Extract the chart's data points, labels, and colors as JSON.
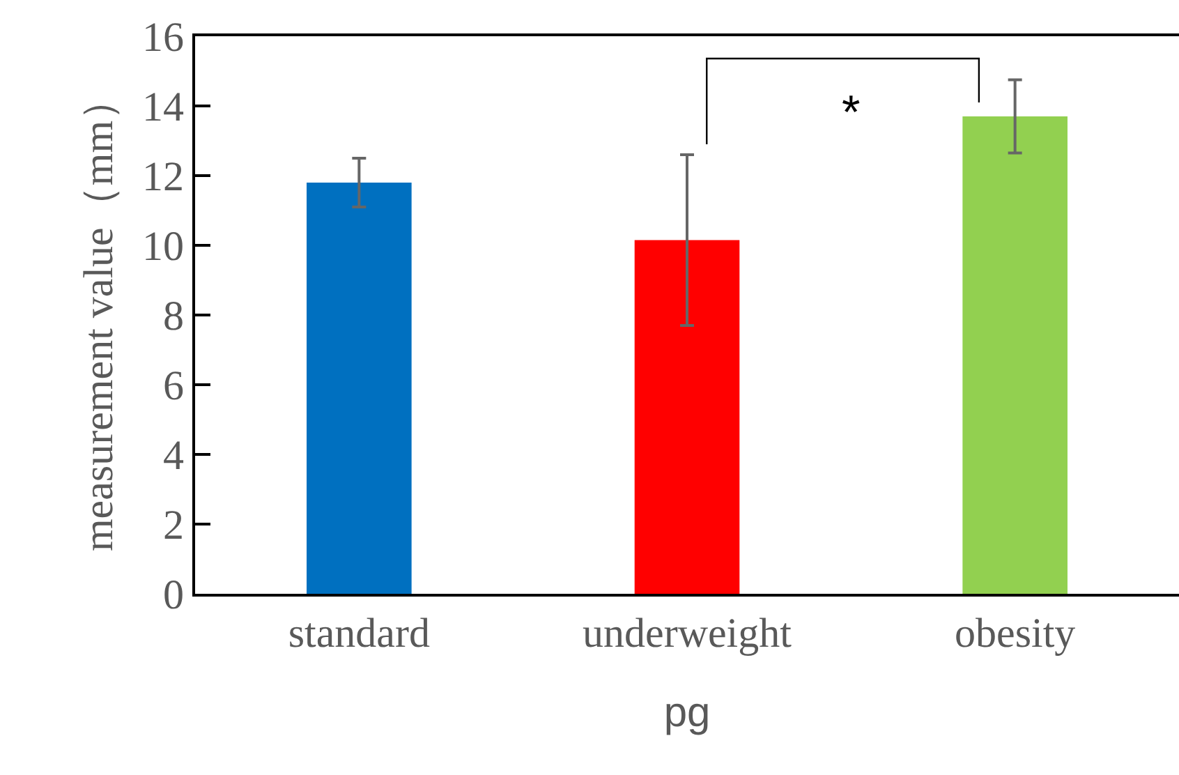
{
  "chart_data": {
    "type": "bar",
    "xlabel": "pg",
    "ylabel": "measurement value（mm）",
    "categories": [
      "standard",
      "underweight",
      "obesity"
    ],
    "values": [
      11.8,
      10.15,
      13.7
    ],
    "errors": [
      0.7,
      2.45,
      1.05
    ],
    "colors": [
      "#0070c0",
      "#ff0000",
      "#92d050"
    ],
    "ylim": [
      0,
      16
    ],
    "yticks": [
      0,
      2,
      4,
      6,
      8,
      10,
      12,
      14,
      16
    ],
    "grid": false,
    "annotations": [
      "*"
    ]
  }
}
